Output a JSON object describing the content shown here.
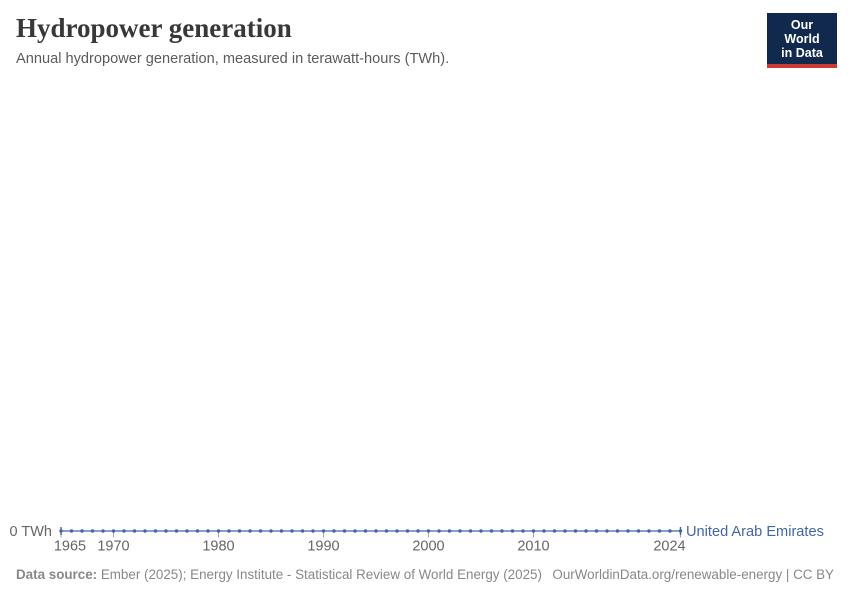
{
  "header": {
    "title": "Hydropower generation",
    "subtitle": "Annual hydropower generation, measured in terawatt-hours (TWh).",
    "logo": {
      "line1": "Our World",
      "line2": "in Data",
      "bg_color": "#12294e",
      "accent_color": "#cc3b31",
      "text_color": "#ffffff"
    }
  },
  "chart_data": {
    "type": "line",
    "title": "Hydropower generation",
    "subtitle": "Annual hydropower generation, measured in terawatt-hours (TWh).",
    "unit": "TWh",
    "grid": false,
    "legend_position": "end-of-line-label",
    "xlim": [
      1965,
      2024
    ],
    "ylim": [
      0,
      0
    ],
    "x_ticks": [
      1965,
      1970,
      1980,
      1990,
      2000,
      2010,
      2024
    ],
    "y_zero_label": "0 TWh",
    "x": [
      1965,
      1966,
      1967,
      1968,
      1969,
      1970,
      1971,
      1972,
      1973,
      1974,
      1975,
      1976,
      1977,
      1978,
      1979,
      1980,
      1981,
      1982,
      1983,
      1984,
      1985,
      1986,
      1987,
      1988,
      1989,
      1990,
      1991,
      1992,
      1993,
      1994,
      1995,
      1996,
      1997,
      1998,
      1999,
      2000,
      2001,
      2002,
      2003,
      2004,
      2005,
      2006,
      2007,
      2008,
      2009,
      2010,
      2011,
      2012,
      2013,
      2014,
      2015,
      2016,
      2017,
      2018,
      2019,
      2020,
      2021,
      2022,
      2023,
      2024
    ],
    "series": [
      {
        "name": "United Arab Emirates",
        "color": "#4266a5",
        "values": [
          0,
          0,
          0,
          0,
          0,
          0,
          0,
          0,
          0,
          0,
          0,
          0,
          0,
          0,
          0,
          0,
          0,
          0,
          0,
          0,
          0,
          0,
          0,
          0,
          0,
          0,
          0,
          0,
          0,
          0,
          0,
          0,
          0,
          0,
          0,
          0,
          0,
          0,
          0,
          0,
          0,
          0,
          0,
          0,
          0,
          0,
          0,
          0,
          0,
          0,
          0,
          0,
          0,
          0,
          0,
          0,
          0,
          0,
          0,
          0
        ]
      }
    ]
  },
  "axis_colors": {
    "tick_label": "#666666",
    "tick_mark": "#a5a5a5"
  },
  "entity_label": "United Arab Emirates",
  "footer": {
    "source_label": "Data source:",
    "source_text": " Ember (2025); Energy Institute - Statistical Review of World Energy (2025)",
    "link_text": "OurWorldinData.org/renewable-energy | CC BY"
  }
}
